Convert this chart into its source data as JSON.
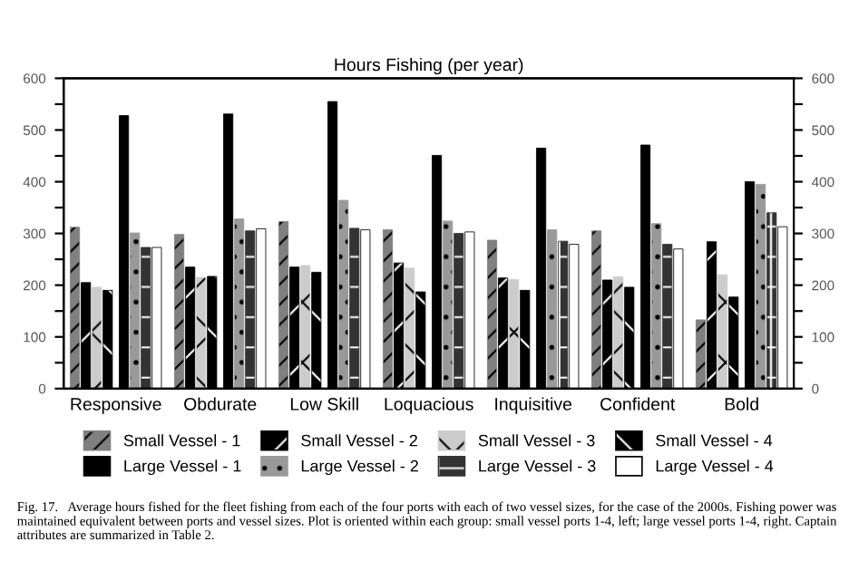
{
  "chart_data": {
    "type": "bar",
    "title": "Hours Fishing (per year)",
    "categories": [
      "Responsive",
      "Obdurate",
      "Low Skill",
      "Loquacious",
      "Inquisitive",
      "Confident",
      "Bold"
    ],
    "series": [
      {
        "name": "Small Vessel - 1",
        "color": "#808080",
        "values": [
          312,
          298,
          323,
          307,
          287,
          305,
          133
        ]
      },
      {
        "name": "Small Vessel - 2",
        "color": "#000000",
        "values": [
          205,
          235,
          235,
          243,
          214,
          210,
          284
        ]
      },
      {
        "name": "Small Vessel - 3",
        "color": "#cccccc",
        "values": [
          196,
          215,
          238,
          233,
          211,
          216,
          220
        ]
      },
      {
        "name": "Small Vessel - 4",
        "color": "#000000",
        "values": [
          190,
          217,
          225,
          187,
          190,
          196,
          177
        ]
      },
      {
        "name": "Large Vessel - 1",
        "color": "#000000",
        "values": [
          528,
          531,
          555,
          451,
          465,
          471,
          400
        ]
      },
      {
        "name": "Large Vessel - 2",
        "color": "#999999",
        "values": [
          301,
          328,
          364,
          324,
          307,
          319,
          395
        ]
      },
      {
        "name": "Large Vessel - 3",
        "color": "#333333",
        "values": [
          273,
          305,
          310,
          300,
          285,
          279,
          340
        ]
      },
      {
        "name": "Large Vessel - 4",
        "color": "#ffffff",
        "values": [
          273,
          309,
          307,
          303,
          279,
          270,
          313
        ]
      }
    ],
    "ylim": [
      0,
      600
    ],
    "yticks": [
      0,
      {
        "value": 50,
        "label": null
      },
      100,
      {
        "value": 150,
        "label": null
      },
      200,
      {
        "value": 250,
        "label": null
      },
      300,
      {
        "value": 350,
        "label": null
      },
      400,
      {
        "value": 450,
        "label": null
      },
      500,
      {
        "value": 550,
        "label": null
      },
      600
    ],
    "y2lim": [
      0,
      600
    ],
    "y2ticks": [
      0,
      {
        "value": 50,
        "label": null
      },
      100,
      {
        "value": 150,
        "label": null
      },
      200,
      {
        "value": 250,
        "label": null
      },
      300,
      {
        "value": 350,
        "label": null
      },
      400,
      {
        "value": 450,
        "label": null
      },
      500,
      {
        "value": 550,
        "label": null
      },
      600
    ],
    "legend": "bottom",
    "grid": false,
    "annotations": [
      "Fig. 17.   Average hours fished for the fleet fishing from each of the four ports with each of two vessel sizes, for the case of the 2000s. Fishing power was maintained equivalent between ports and vessel sizes. Plot is oriented within each group: small vessel ports 1-4, left; large vessel ports 1-4, right. Captain attributes are summarized in Table 2."
    ]
  }
}
